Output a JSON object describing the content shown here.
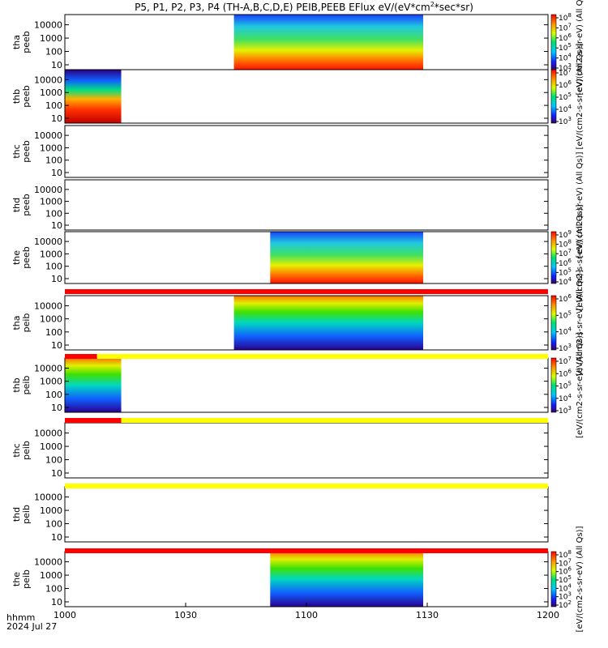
{
  "title": "P5, P1, P2, P3, P4 (TH-A,B,C,D,E) PEIB,PEEB EFlux eV/(eV*cm",
  "title_sup": "2",
  "title_tail": "*sec*sr)",
  "footer": {
    "line1": "hhmm",
    "line2": "2024 Jul 27"
  },
  "colors": {
    "flag_red": "#ff0000",
    "flag_yellow": "#ffff00",
    "empty": "#ffffff"
  },
  "chart_data": {
    "type": "heatmap",
    "x_ticks": [
      "1000",
      "1030",
      "1100",
      "1130",
      "1200"
    ],
    "xlim": [
      "10:00",
      "12:00"
    ],
    "y_ticks": [
      "10",
      "100",
      "1000",
      "10000"
    ],
    "y_scale": "log",
    "panels": [
      {
        "id": "tha-peeb",
        "label1": "tha",
        "label2": "peeb",
        "data_start": "10:42",
        "data_end": "11:29",
        "has_colorbar": true,
        "cb_ticks": [
          "10^3",
          "10^4",
          "10^5",
          "10^6",
          "10^7",
          "10^8"
        ],
        "cb_label": "[eV/(cm2-s-sr-eV) (All Qs)]"
      },
      {
        "id": "thb-peeb",
        "label1": "thb",
        "label2": "peeb",
        "data_start": "10:00",
        "data_end": "10:14",
        "has_colorbar": true,
        "cb_ticks": [
          "10^3",
          "10^4",
          "10^5",
          "10^6",
          "10^7"
        ],
        "cb_label": "[eV/(cm2-s-sr-eV) (All Qs)]"
      },
      {
        "id": "thc-peeb",
        "label1": "thc",
        "label2": "peeb",
        "data_start": null,
        "data_end": null,
        "has_colorbar": false
      },
      {
        "id": "thd-peeb",
        "label1": "thd",
        "label2": "peeb",
        "data_start": null,
        "data_end": null,
        "has_colorbar": false,
        "cb_label": "[eV/(cm2-s-sr-eV) (All Qs)]"
      },
      {
        "id": "the-peeb",
        "label1": "the",
        "label2": "peeb",
        "data_start": "10:51",
        "data_end": "11:29",
        "has_colorbar": true,
        "cb_ticks": [
          "10^4",
          "10^5",
          "10^6",
          "10^7",
          "10^8",
          "10^9"
        ],
        "cb_label": "[eV/(cm2-s-sr-eV) (All Qs)]"
      },
      {
        "id": "tha-peib",
        "label1": "tha",
        "label2": "peib",
        "data_start": "10:42",
        "data_end": "11:29",
        "has_colorbar": true,
        "cb_ticks": [
          "10^3",
          "10^4",
          "10^5",
          "10^6"
        ],
        "cb_label": "[eV/(cm2-s-sr-eV) (All Qs)]"
      },
      {
        "id": "thb-peib",
        "label1": "thb",
        "label2": "peib",
        "data_start": "10:00",
        "data_end": "10:14",
        "has_colorbar": true,
        "cb_ticks": [
          "10^3",
          "10^4",
          "10^5",
          "10^6",
          "10^7"
        ],
        "cb_label": "[eV/(cm2-s-sr-eV) (All Qs)]"
      },
      {
        "id": "thc-peib",
        "label1": "thc",
        "label2": "peib",
        "data_start": null,
        "data_end": null,
        "has_colorbar": false
      },
      {
        "id": "thd-peib",
        "label1": "thd",
        "label2": "peib",
        "data_start": null,
        "data_end": null,
        "has_colorbar": false
      },
      {
        "id": "the-peib",
        "label1": "the",
        "label2": "peib",
        "data_start": "10:51",
        "data_end": "11:29",
        "has_colorbar": true,
        "cb_ticks": [
          "10^2",
          "10^3",
          "10^4",
          "10^5",
          "10^6",
          "10^7",
          "10^8"
        ],
        "cb_label": "[eV/(cm2-s-sr-eV) (All Qs)]"
      }
    ],
    "flag_bars": [
      {
        "after_panel": "the-peeb",
        "segments": [
          {
            "start": "10:00",
            "end": "12:00",
            "color": "red"
          }
        ]
      },
      {
        "after_panel": "tha-peib",
        "segments": [
          {
            "start": "10:00",
            "end": "10:08",
            "color": "red"
          },
          {
            "start": "10:08",
            "end": "12:00",
            "color": "yellow"
          }
        ]
      },
      {
        "after_panel": "thb-peib",
        "segments": [
          {
            "start": "10:00",
            "end": "10:14",
            "color": "red"
          },
          {
            "start": "10:14",
            "end": "12:00",
            "color": "yellow"
          }
        ]
      },
      {
        "after_panel": "thc-peib",
        "segments": [
          {
            "start": "10:00",
            "end": "12:00",
            "color": "yellow"
          }
        ]
      },
      {
        "after_panel": "thd-peib",
        "segments": [
          {
            "start": "10:00",
            "end": "12:00",
            "color": "red"
          }
        ]
      }
    ]
  }
}
